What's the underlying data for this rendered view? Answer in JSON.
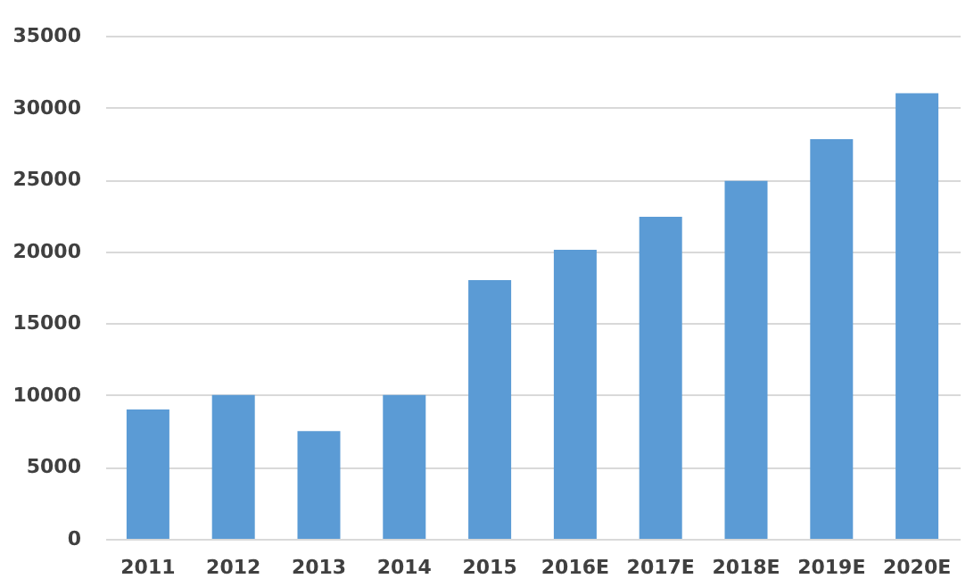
{
  "chart_data": {
    "type": "bar",
    "categories": [
      "2011",
      "2012",
      "2013",
      "2014",
      "2015",
      "2016E",
      "2017E",
      "2018E",
      "2019E",
      "2020E"
    ],
    "values": [
      9000,
      10000,
      7500,
      10000,
      18000,
      20100,
      22400,
      24900,
      27800,
      31000
    ],
    "color": "#5b9bd5",
    "ylim": [
      0,
      35000
    ],
    "yticks": [
      0,
      5000,
      10000,
      15000,
      20000,
      25000,
      30000,
      35000
    ],
    "grid": "y"
  }
}
